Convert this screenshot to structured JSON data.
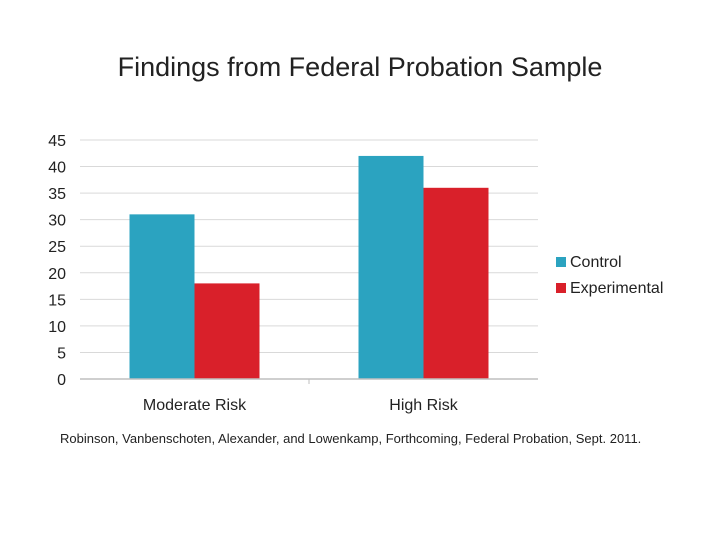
{
  "slide": {
    "title": "Findings from Federal Probation Sample",
    "citation": "Robinson, Vanbenschoten, Alexander, and Lowenkamp, Forthcoming, Federal Probation, Sept. 2011."
  },
  "chart_data": {
    "type": "bar",
    "title": "",
    "xlabel": "",
    "ylabel": "",
    "categories": [
      "Moderate Risk",
      "High Risk"
    ],
    "series": [
      {
        "name": "Control",
        "values": [
          31,
          42
        ],
        "color": "#2ba3c0"
      },
      {
        "name": "Experimental",
        "values": [
          18,
          36
        ],
        "color": "#d9202a"
      }
    ],
    "ylim": [
      0,
      45
    ],
    "yticks": [
      0,
      5,
      10,
      15,
      20,
      25,
      30,
      35,
      40,
      45
    ],
    "grid": true,
    "legend": "right"
  }
}
